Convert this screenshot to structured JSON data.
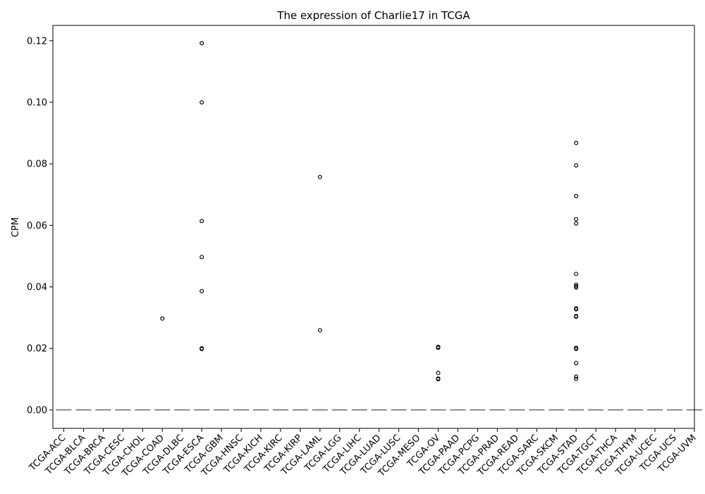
{
  "chart_data": {
    "type": "box",
    "title": "The expression of Charlie17 in TCGA",
    "xlabel": "",
    "ylabel": "CPM",
    "ylim": [
      -0.006,
      0.125
    ],
    "yticks": [
      "0.00",
      "0.02",
      "0.04",
      "0.06",
      "0.08",
      "0.10",
      "0.12"
    ],
    "ytick_values": [
      0.0,
      0.02,
      0.04,
      0.06,
      0.08,
      0.1,
      0.12
    ],
    "grid": false,
    "categories": [
      "TCGA-ACC",
      "TCGA-BLCA",
      "TCGA-BRCA",
      "TCGA-CESC",
      "TCGA-CHOL",
      "TCGA-COAD",
      "TCGA-DLBC",
      "TCGA-ESCA",
      "TCGA-GBM",
      "TCGA-HNSC",
      "TCGA-KICH",
      "TCGA-KIRC",
      "TCGA-KIRP",
      "TCGA-LAML",
      "TCGA-LGG",
      "TCGA-LIHC",
      "TCGA-LUAD",
      "TCGA-LUSC",
      "TCGA-MESO",
      "TCGA-OV",
      "TCGA-PAAD",
      "TCGA-PCPG",
      "TCGA-PRAD",
      "TCGA-READ",
      "TCGA-SARC",
      "TCGA-SKCM",
      "TCGA-STAD",
      "TCGA-TGCT",
      "TCGA-THCA",
      "TCGA-THYM",
      "TCGA-UCEC",
      "TCGA-UCS",
      "TCGA-UVM"
    ],
    "medians": [
      0,
      0,
      0,
      0,
      0,
      0,
      0,
      0,
      0,
      0,
      0,
      0,
      0,
      0,
      0,
      0,
      0,
      0,
      0,
      0,
      0,
      0,
      0,
      0,
      0,
      0,
      0,
      0,
      0,
      0,
      0,
      0,
      0
    ],
    "outliers": {
      "TCGA-COAD": [
        0.0297
      ],
      "TCGA-ESCA": [
        0.1192,
        0.1,
        0.0614,
        0.0497,
        0.0386,
        0.02,
        0.0198
      ],
      "TCGA-LAML": [
        0.0757,
        0.0259
      ],
      "TCGA-OV": [
        0.0205,
        0.0202,
        0.012,
        0.0102,
        0.01
      ],
      "TCGA-STAD": [
        0.0868,
        0.0795,
        0.0695,
        0.062,
        0.0606,
        0.0442,
        0.0407,
        0.0402,
        0.0398,
        0.033,
        0.0327,
        0.0305,
        0.0303,
        0.0202,
        0.0198,
        0.0152,
        0.0108,
        0.0101
      ]
    },
    "colors": {
      "median_line": "#777777",
      "outlier_stroke": "#000000",
      "axis": "#000000"
    }
  }
}
